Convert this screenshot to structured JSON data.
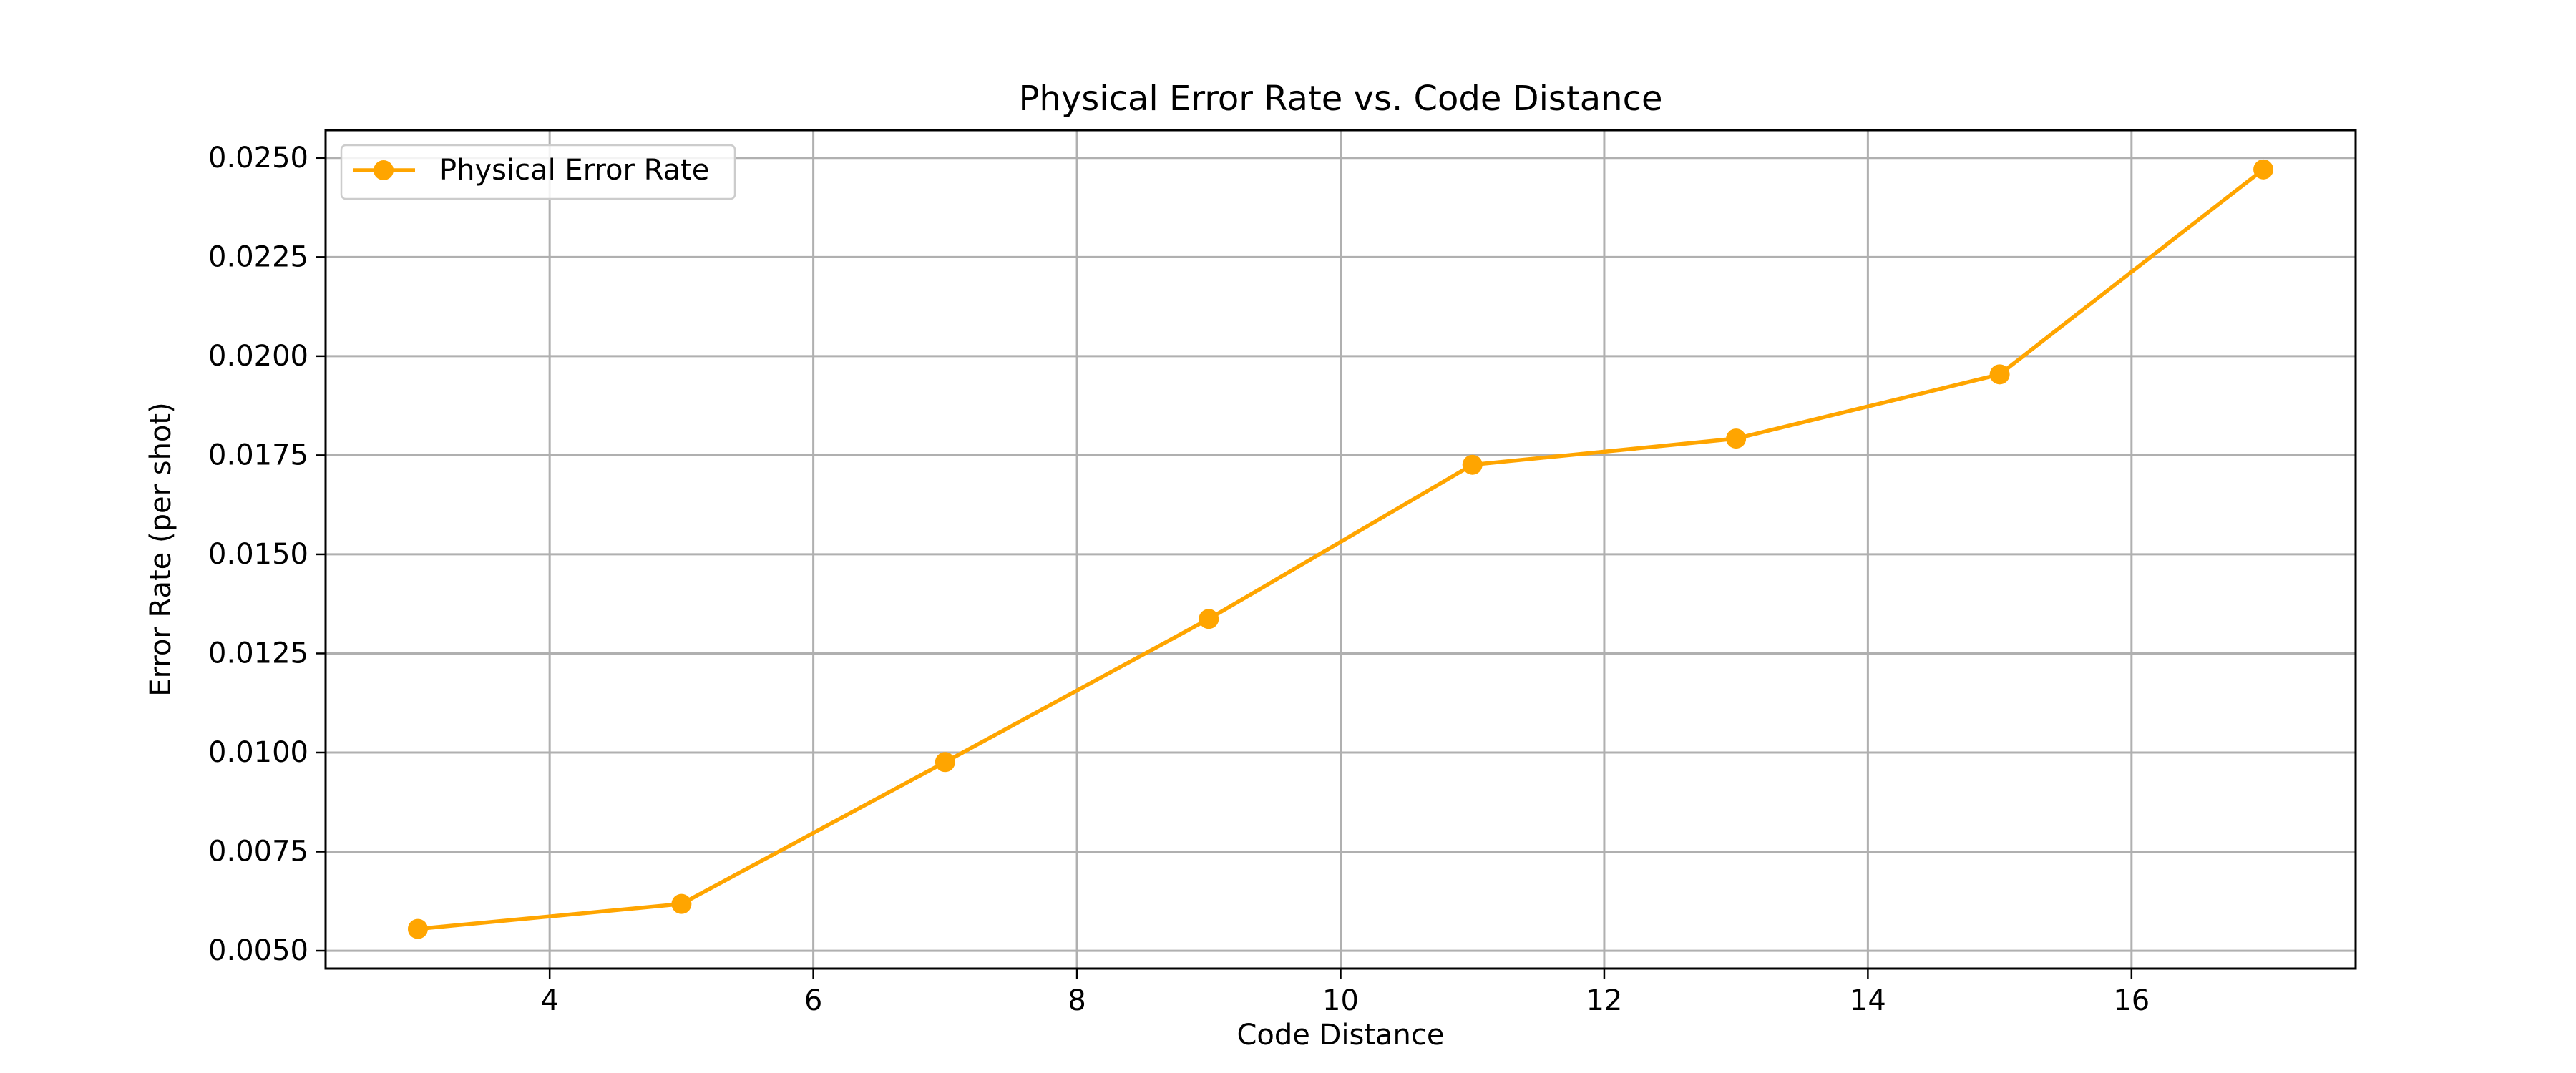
{
  "chart_data": {
    "type": "line",
    "title": "Physical Error Rate vs. Code Distance",
    "xlabel": "Code Distance",
    "ylabel": "Error Rate (per shot)",
    "xlim": [
      2.3,
      17.7
    ],
    "ylim": [
      0.00455,
      0.0257
    ],
    "xticks": [
      4,
      6,
      8,
      10,
      12,
      14,
      16
    ],
    "xtick_labels": [
      "4",
      "6",
      "8",
      "10",
      "12",
      "14",
      "16"
    ],
    "yticks": [
      0.005,
      0.0075,
      0.01,
      0.0125,
      0.015,
      0.0175,
      0.02,
      0.0225,
      0.025
    ],
    "ytick_labels": [
      "0.0050",
      "0.0075",
      "0.0100",
      "0.0125",
      "0.0150",
      "0.0175",
      "0.0200",
      "0.0225",
      "0.0250"
    ],
    "grid": true,
    "legend_position": "top-left",
    "series": [
      {
        "name": "Physical Error Rate",
        "color": "#ffa500",
        "marker": "circle",
        "x": [
          3,
          5,
          7,
          9,
          11,
          13,
          15,
          17
        ],
        "y": [
          0.00555,
          0.00618,
          0.00976,
          0.01337,
          0.01726,
          0.01792,
          0.01954,
          0.02471
        ]
      }
    ]
  }
}
